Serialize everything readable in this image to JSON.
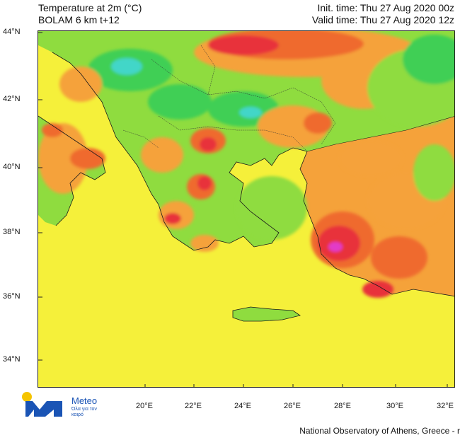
{
  "header": {
    "title": "Temperature at 2m (°C)",
    "model": "BOLAM 6 km t+12",
    "init_time": "Init. time: Thu 27 Aug 2020 00z",
    "valid_time": "Valid time: Thu 27 Aug 2020 12z"
  },
  "axes": {
    "lat_labels": [
      "44°N",
      "42°N",
      "40°N",
      "38°N",
      "36°N",
      "34°N"
    ],
    "lon_labels": [
      "20°E",
      "22°E",
      "24°E",
      "26°E",
      "28°E",
      "30°E",
      "32°E"
    ]
  },
  "logo": {
    "brand": "Meteo",
    "tagline": "Όλα για τον καιρό"
  },
  "footer": {
    "credit": "National Observatory of Athens, Greece - r"
  },
  "colors": {
    "sea_yellow": "#f5f03a",
    "land_green": "#8fdc3f",
    "dark_green": "#3fcf55",
    "cyan": "#43d6c8",
    "orange": "#f5a23a",
    "dark_orange": "#ef6a2e",
    "red": "#e8303a",
    "magenta": "#e23ac8"
  }
}
